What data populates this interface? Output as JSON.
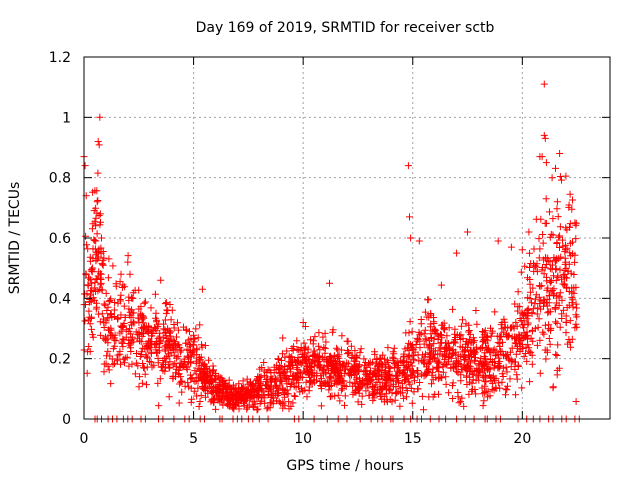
{
  "chart_data": {
    "type": "scatter",
    "title": "Day 169 of 2019, SRMTID for receiver sctb",
    "xlabel": "GPS time / hours",
    "ylabel": "SRMTID / TECUs",
    "xlim": [
      0,
      24
    ],
    "ylim": [
      0,
      1.2
    ],
    "x_ticks": [
      0,
      5,
      10,
      15,
      20
    ],
    "x_tick_labels": [
      "0",
      "5",
      "10",
      "15",
      "20"
    ],
    "y_ticks": [
      0,
      0.2,
      0.4,
      0.6,
      0.8,
      1.0,
      1.2
    ],
    "y_tick_labels": [
      "0",
      "0.2",
      "0.4",
      "0.6",
      "0.8",
      "1",
      "1.2"
    ],
    "grid": true,
    "marker": "plus",
    "series": [
      {
        "name": "SRMTID",
        "color": "#ff0000",
        "profile": [
          [
            0.0,
            0.45,
            0.15
          ],
          [
            0.3,
            0.4,
            0.12
          ],
          [
            0.6,
            0.55,
            0.15
          ],
          [
            0.8,
            0.45,
            0.12
          ],
          [
            1.0,
            0.32,
            0.08
          ],
          [
            1.5,
            0.3,
            0.08
          ],
          [
            2.0,
            0.32,
            0.09
          ],
          [
            3.0,
            0.25,
            0.07
          ],
          [
            3.8,
            0.26,
            0.07
          ],
          [
            4.5,
            0.18,
            0.05
          ],
          [
            5.0,
            0.2,
            0.06
          ],
          [
            5.5,
            0.14,
            0.04
          ],
          [
            6.0,
            0.1,
            0.03
          ],
          [
            7.0,
            0.07,
            0.02
          ],
          [
            8.0,
            0.09,
            0.03
          ],
          [
            9.0,
            0.13,
            0.04
          ],
          [
            10.0,
            0.17,
            0.05
          ],
          [
            11.0,
            0.18,
            0.05
          ],
          [
            12.0,
            0.16,
            0.05
          ],
          [
            13.0,
            0.14,
            0.04
          ],
          [
            14.0,
            0.13,
            0.04
          ],
          [
            14.8,
            0.17,
            0.06
          ],
          [
            15.5,
            0.22,
            0.07
          ],
          [
            16.5,
            0.24,
            0.07
          ],
          [
            17.5,
            0.2,
            0.06
          ],
          [
            18.5,
            0.18,
            0.06
          ],
          [
            19.5,
            0.22,
            0.07
          ],
          [
            20.0,
            0.3,
            0.09
          ],
          [
            20.5,
            0.38,
            0.12
          ],
          [
            21.0,
            0.42,
            0.15
          ],
          [
            21.5,
            0.45,
            0.14
          ],
          [
            22.0,
            0.45,
            0.13
          ],
          [
            22.5,
            0.45,
            0.12
          ]
        ],
        "outliers": [
          [
            0.0,
            0.87
          ],
          [
            0.05,
            0.84
          ],
          [
            0.1,
            0.74
          ],
          [
            0.35,
            0.45
          ],
          [
            0.6,
            0.72
          ],
          [
            0.65,
            0.92
          ],
          [
            0.72,
            1.0
          ],
          [
            0.75,
            0.68
          ],
          [
            0.8,
            0.6
          ],
          [
            2.0,
            0.52
          ],
          [
            2.1,
            0.48
          ],
          [
            3.5,
            0.46
          ],
          [
            5.4,
            0.43
          ],
          [
            10.0,
            0.32
          ],
          [
            11.2,
            0.45
          ],
          [
            14.8,
            0.84
          ],
          [
            14.85,
            0.67
          ],
          [
            14.9,
            0.6
          ],
          [
            15.3,
            0.59
          ],
          [
            17.0,
            0.55
          ],
          [
            17.5,
            0.62
          ],
          [
            18.9,
            0.59
          ],
          [
            19.5,
            0.57
          ],
          [
            20.3,
            0.62
          ],
          [
            20.8,
            0.87
          ],
          [
            20.9,
            0.87
          ],
          [
            21.0,
            0.94
          ],
          [
            21.05,
            0.93
          ],
          [
            21.0,
            1.11
          ],
          [
            21.1,
            0.85
          ],
          [
            21.7,
            0.88
          ],
          [
            21.6,
            0.72
          ],
          [
            22.4,
            0.65
          ]
        ],
        "zero_points": [
          0.5,
          0.6,
          0.8,
          1.1,
          1.3,
          1.5,
          1.8,
          2.0,
          2.2,
          2.6,
          2.8,
          3.4,
          3.6,
          4.1,
          4.6,
          4.8,
          5.3,
          5.5,
          6.2,
          6.3,
          6.8,
          7.0,
          7.2,
          7.5,
          7.7,
          8.0,
          8.4,
          9.6,
          9.8,
          10.5,
          11.1,
          11.6,
          12.0,
          12.6,
          13.1,
          13.4,
          13.6,
          14.0,
          14.1,
          14.6,
          14.9,
          15.2,
          15.4,
          15.8,
          16.2,
          16.5,
          17.0,
          17.4,
          17.8,
          18.3,
          18.4,
          18.8,
          19.0,
          19.8,
          20.2,
          20.5,
          20.8,
          21.2,
          21.4,
          21.8,
          22.0,
          22.4,
          22.6
        ]
      }
    ]
  }
}
